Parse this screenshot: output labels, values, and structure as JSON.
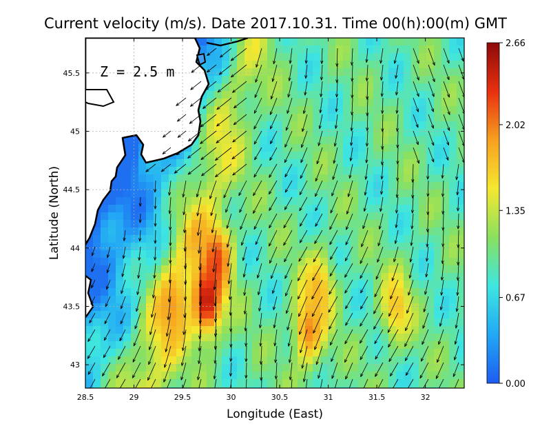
{
  "title": "Current velocity (m/s). Date 2017.10.31. Time 00(h):00(m) GMT",
  "depth_label": "Z = 2.5 m",
  "chart_data": {
    "type": "heatmap",
    "variable": "Current velocity (m/s)",
    "xlabel": "Longitude (East)",
    "ylabel": "Latitude (North)",
    "xlim": [
      28.5,
      32.4
    ],
    "ylim": [
      42.8,
      45.8
    ],
    "xticks": [
      {
        "value": 28.5,
        "label": "28.5"
      },
      {
        "value": 29,
        "label": "29"
      },
      {
        "value": 29.5,
        "label": "29.5"
      },
      {
        "value": 30,
        "label": "30"
      },
      {
        "value": 30.5,
        "label": "30.5"
      },
      {
        "value": 31,
        "label": "31"
      },
      {
        "value": 31.5,
        "label": "31.5"
      },
      {
        "value": 32,
        "label": "32"
      }
    ],
    "yticks": [
      {
        "value": 43,
        "label": "43"
      },
      {
        "value": 43.5,
        "label": "43.5"
      },
      {
        "value": 44,
        "label": "44"
      },
      {
        "value": 44.5,
        "label": "44.5"
      },
      {
        "value": 45,
        "label": "45"
      },
      {
        "value": 45.5,
        "label": "45.5"
      }
    ],
    "grid": true,
    "colorbar": {
      "min": 0.0,
      "max": 2.66,
      "ticks": [
        "2.66",
        "2.02",
        "1.35",
        "0.67",
        "0.00"
      ],
      "tick_values": [
        2.66,
        2.02,
        1.35,
        0.67,
        0.0
      ],
      "colors": [
        "#1e5cf0",
        "#22a8f5",
        "#3ee6e0",
        "#8ae060",
        "#f5e830",
        "#f6a020",
        "#e83010",
        "#8c0a0a"
      ]
    },
    "colors": {
      "land": "#ffffff",
      "coastline": "#000000",
      "arrows": "#000000",
      "grid": "#b0b0b0"
    },
    "speed_maxima": [
      {
        "lon": 29.75,
        "lat": 43.55,
        "speed": 2.66
      },
      {
        "lon": 29.85,
        "lat": 43.9,
        "speed": 2.3
      },
      {
        "lon": 30.8,
        "lat": 43.3,
        "speed": 2.1
      },
      {
        "lon": 29.4,
        "lat": 43.5,
        "speed": 1.95
      },
      {
        "lon": 30.9,
        "lat": 43.65,
        "speed": 1.85
      },
      {
        "lon": 31.7,
        "lat": 43.5,
        "speed": 1.8
      }
    ],
    "flow_direction": "predominantly southward / south-southwest"
  }
}
